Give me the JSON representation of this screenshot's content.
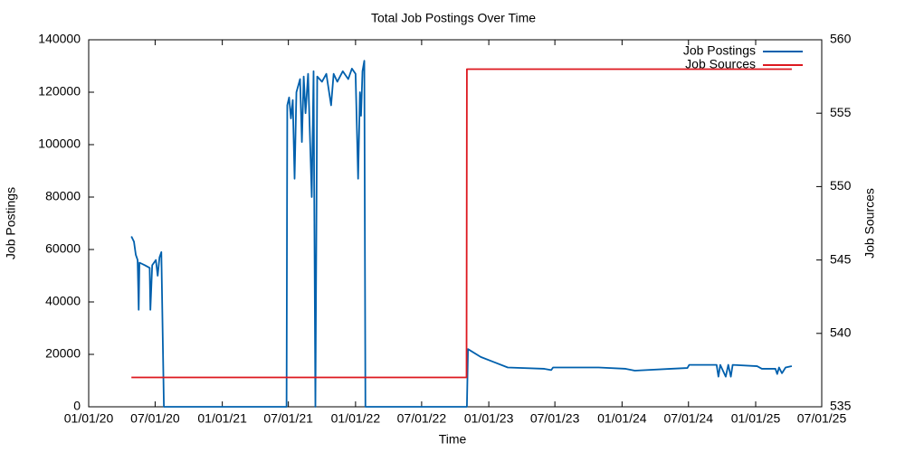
{
  "chart_data": {
    "type": "line",
    "title": "Total Job Postings Over Time",
    "x_label": "Time",
    "y_label": "Job Postings",
    "y2_label": "Job Sources",
    "xlim": [
      "2020-01-01",
      "2025-07-01"
    ],
    "xticks": [
      {
        "value": "2020-01-01",
        "label": "01/01/20"
      },
      {
        "value": "2020-07-01",
        "label": "07/01/20"
      },
      {
        "value": "2021-01-01",
        "label": "01/01/21"
      },
      {
        "value": "2021-07-01",
        "label": "07/01/21"
      },
      {
        "value": "2022-01-01",
        "label": "01/01/22"
      },
      {
        "value": "2022-07-01",
        "label": "07/01/22"
      },
      {
        "value": "2023-01-01",
        "label": "01/01/23"
      },
      {
        "value": "2023-07-01",
        "label": "07/01/23"
      },
      {
        "value": "2024-01-01",
        "label": "01/01/24"
      },
      {
        "value": "2024-07-01",
        "label": "07/01/24"
      },
      {
        "value": "2025-01-01",
        "label": "01/01/25"
      },
      {
        "value": "2025-07-01",
        "label": "07/01/25"
      }
    ],
    "ylim": [
      0,
      140000
    ],
    "yticks": [
      0,
      20000,
      40000,
      60000,
      80000,
      100000,
      120000,
      140000
    ],
    "y2lim": [
      535,
      560
    ],
    "y2ticks": [
      535,
      540,
      545,
      550,
      555,
      560
    ],
    "legend": "top-right",
    "grid": false,
    "series": [
      {
        "name": "Job Postings",
        "color": "#0060ad",
        "x": [
          "2020-04-27",
          "2020-05-04",
          "2020-05-09",
          "2020-05-14",
          "2020-05-17",
          "2020-05-19",
          "2020-06-03",
          "2020-06-16",
          "2020-06-18",
          "2020-06-23",
          "2020-07-03",
          "2020-07-08",
          "2020-07-13",
          "2020-07-18",
          "2020-07-25",
          "2021-06-26",
          "2021-06-28",
          "2021-07-03",
          "2021-07-08",
          "2021-07-13",
          "2021-07-18",
          "2021-07-23",
          "2021-08-02",
          "2021-08-07",
          "2021-08-12",
          "2021-08-17",
          "2021-08-24",
          "2021-09-03",
          "2021-09-08",
          "2021-09-13",
          "2021-09-18",
          "2021-10-01",
          "2021-10-13",
          "2021-10-26",
          "2021-11-02",
          "2021-11-12",
          "2021-11-27",
          "2021-12-12",
          "2021-12-22",
          "2022-01-01",
          "2022-01-08",
          "2022-01-13",
          "2022-01-16",
          "2022-01-20",
          "2022-01-25",
          "2022-01-28",
          "2022-11-02",
          "2022-11-05",
          "2022-12-10",
          "2023-01-16",
          "2023-02-22",
          "2023-06-02",
          "2023-06-21",
          "2023-06-26",
          "2023-10-29",
          "2024-01-11",
          "2024-02-05",
          "2024-05-14",
          "2024-06-28",
          "2024-07-03",
          "2024-09-16",
          "2024-09-21",
          "2024-09-26",
          "2024-10-11",
          "2024-10-18",
          "2024-10-25",
          "2024-10-30",
          "2025-01-05",
          "2025-01-18",
          "2025-02-24",
          "2025-03-01",
          "2025-03-06",
          "2025-03-14",
          "2025-03-24",
          "2025-04-10"
        ],
        "values": [
          65000,
          63000,
          58000,
          56000,
          37000,
          55000,
          54000,
          53000,
          37000,
          54000,
          56000,
          50000,
          57000,
          59000,
          0,
          0,
          115000,
          118000,
          110000,
          117000,
          87000,
          120000,
          125000,
          101000,
          126000,
          112000,
          127000,
          80000,
          128000,
          0,
          126000,
          124000,
          127000,
          115000,
          127000,
          124000,
          128000,
          125000,
          129000,
          127000,
          87000,
          120000,
          111000,
          128000,
          132000,
          0,
          0,
          22000,
          19000,
          17000,
          15000,
          14500,
          14000,
          15000,
          15000,
          14500,
          13800,
          14500,
          14800,
          16000,
          16000,
          11500,
          16000,
          11500,
          16000,
          11500,
          16000,
          15500,
          14500,
          14500,
          12500,
          15000,
          12800,
          15000,
          15500
        ]
      },
      {
        "name": "Job Sources",
        "color": "#dd181f",
        "axis": "y2",
        "x": [
          "2020-04-27",
          "2022-11-01",
          "2022-11-02",
          "2025-04-10"
        ],
        "values": [
          537,
          537,
          558,
          558
        ]
      }
    ]
  }
}
